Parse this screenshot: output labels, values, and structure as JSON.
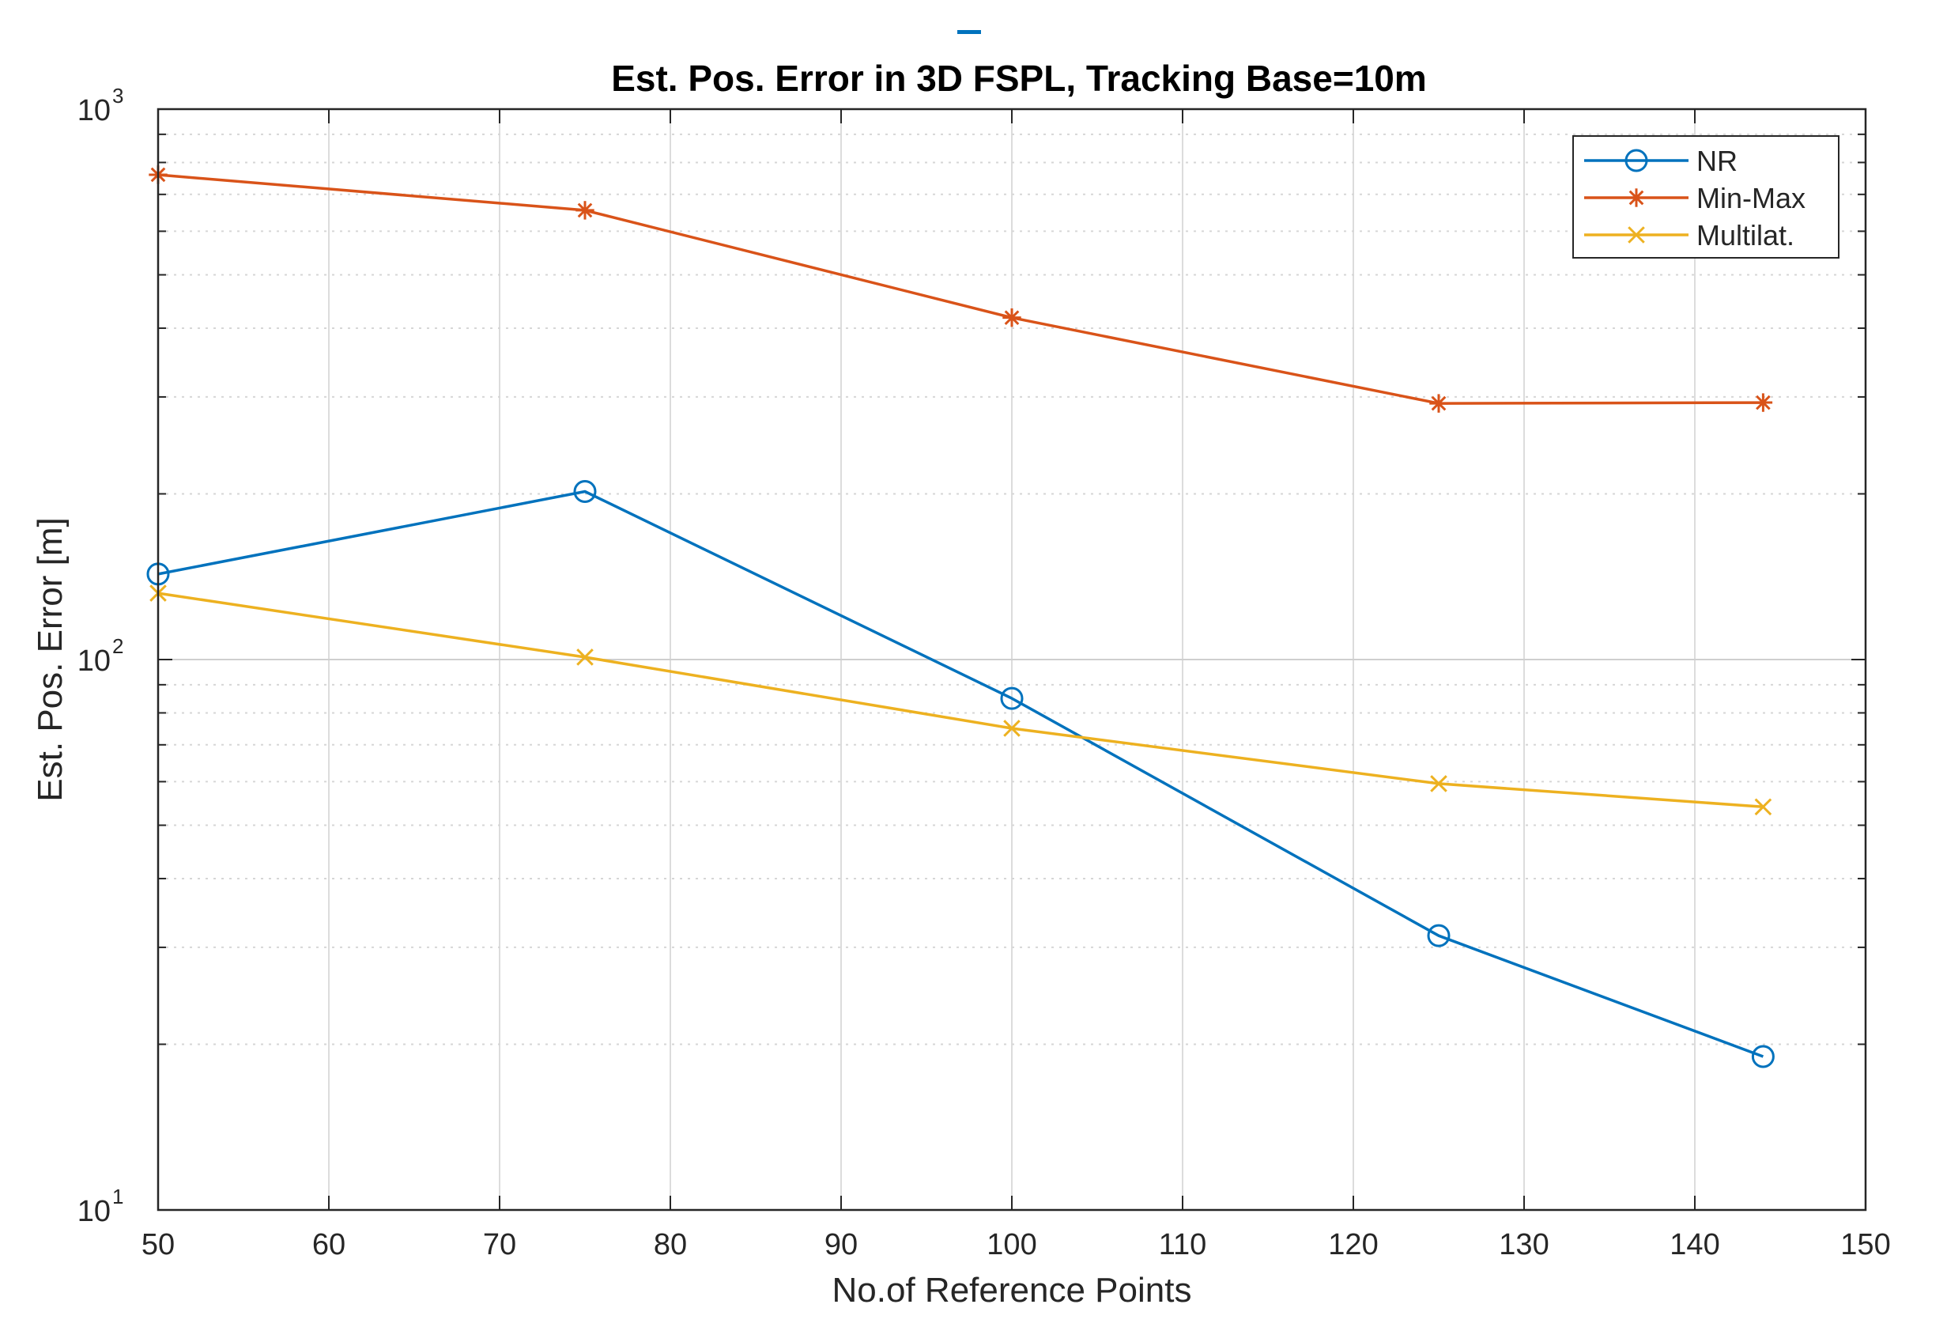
{
  "chart_data": {
    "type": "line",
    "title": "Est. Pos. Error in 3D FSPL, Tracking Base=10m",
    "xlabel": "No.of Reference Points",
    "ylabel": "Est. Pos. Error [m]",
    "xscale": "linear",
    "yscale": "log",
    "xlim": [
      50,
      150
    ],
    "ylim": [
      10,
      1000
    ],
    "xticks": [
      50,
      60,
      70,
      80,
      90,
      100,
      110,
      120,
      130,
      140,
      150
    ],
    "yticks": [
      {
        "value": 10,
        "base": "10",
        "exp": "1"
      },
      {
        "value": 100,
        "base": "10",
        "exp": "2"
      },
      {
        "value": 1000,
        "base": "10",
        "exp": "3"
      }
    ],
    "grid": true,
    "legend_position": "top-right",
    "series": [
      {
        "name": "NR",
        "color": "#0072BD",
        "marker": "circle",
        "x": [
          50,
          75,
          100,
          125,
          144
        ],
        "y": [
          143,
          202,
          85,
          31.5,
          19
        ]
      },
      {
        "name": "Min-Max",
        "color": "#D95319",
        "marker": "asterisk",
        "x": [
          50,
          75,
          100,
          125,
          144
        ],
        "y": [
          760,
          655,
          418,
          292,
          293
        ]
      },
      {
        "name": "Multilat.",
        "color": "#EDB120",
        "marker": "x",
        "x": [
          50,
          75,
          100,
          125,
          144
        ],
        "y": [
          132,
          101,
          75,
          59.5,
          54
        ]
      }
    ]
  }
}
